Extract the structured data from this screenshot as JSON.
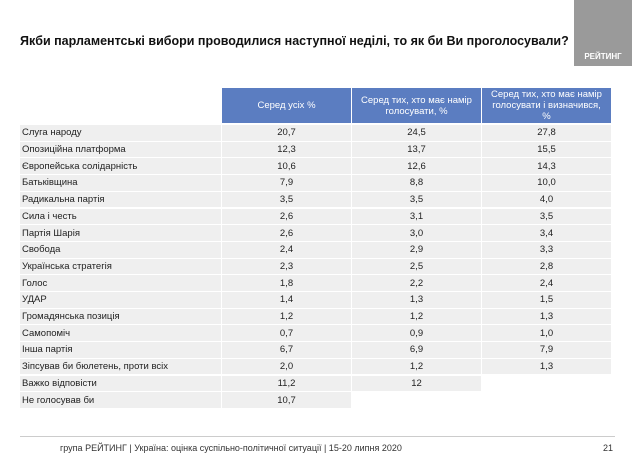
{
  "header": {
    "title": "Якби парламентські вибори проводилися наступної неділі, то як би Ви проголосували?",
    "logo": "РЕЙТИНГ"
  },
  "table": {
    "columns": [
      "Серед усіх %",
      "Серед тих, хто має намір голосувати, %",
      "Серед тих, хто має намір голосувати і визначився, %"
    ],
    "rows": [
      [
        "Слуга народу",
        "20,7",
        "24,5",
        "27,8"
      ],
      [
        "Опозиційна платформа",
        "12,3",
        "13,7",
        "15,5"
      ],
      [
        "Європейська солідарність",
        "10,6",
        "12,6",
        "14,3"
      ],
      [
        "Батьківщина",
        "7,9",
        "8,8",
        "10,0"
      ],
      [
        "Радикальна партія",
        "3,5",
        "3,5",
        "4,0"
      ],
      [
        "Сила і честь",
        "2,6",
        "3,1",
        "3,5"
      ],
      [
        "Партія Шарія",
        "2,6",
        "3,0",
        "3,4"
      ],
      [
        "Свобода",
        "2,4",
        "2,9",
        "3,3"
      ],
      [
        "Українська стратегія",
        "2,3",
        "2,5",
        "2,8"
      ],
      [
        "Голос",
        "1,8",
        "2,2",
        "2,4"
      ],
      [
        "УДАР",
        "1,4",
        "1,3",
        "1,5"
      ],
      [
        "Громадянська позиція",
        "1,2",
        "1,2",
        "1,3"
      ],
      [
        "Самопоміч",
        "0,7",
        "0,9",
        "1,0"
      ],
      [
        "Інша партія",
        "6,7",
        "6,9",
        "7,9"
      ],
      [
        "Зіпсував би бюлетень, проти всіх",
        "2,0",
        "1,2",
        "1,3"
      ],
      [
        "Важко відповісти",
        "11,2",
        "12"
      ],
      [
        "Не голосував би",
        "10,7"
      ]
    ]
  },
  "footer": {
    "source": "група РЕЙТИНГ | Україна: оцінка суспільно-політичної ситуації | 15-20 липня 2020",
    "page": "21"
  }
}
